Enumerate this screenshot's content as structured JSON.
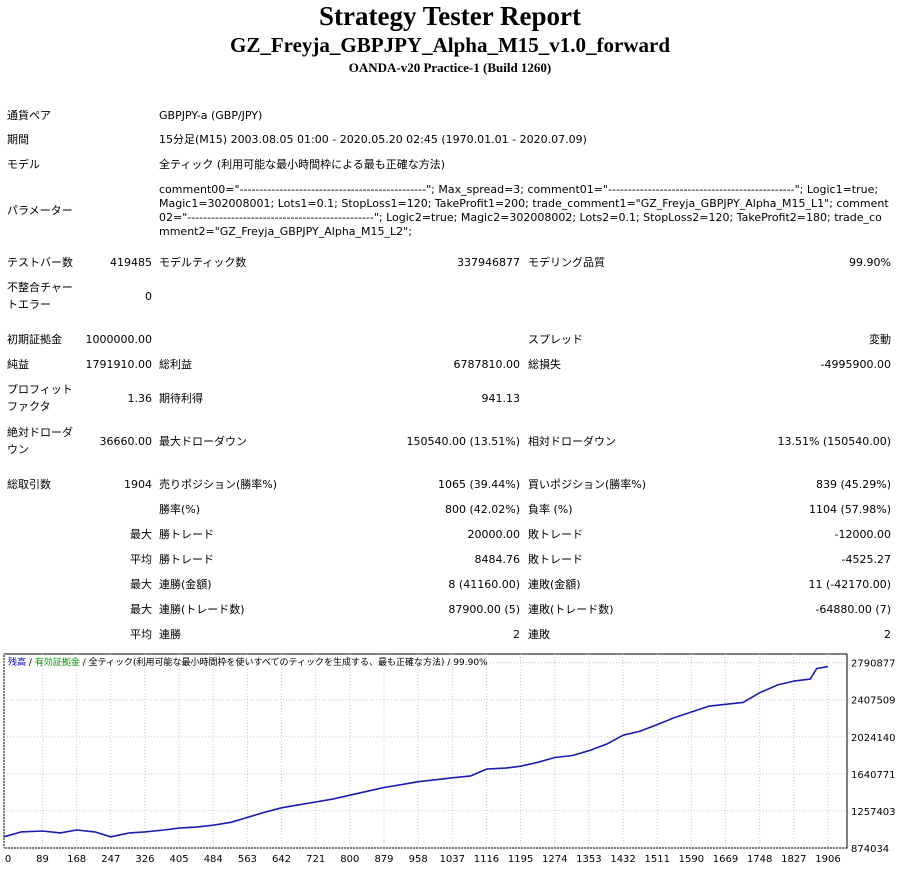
{
  "report": {
    "title": "Strategy Tester Report",
    "expert": "GZ_Freyja_GBPJPY_Alpha_M15_v1.0_forward",
    "server": "OANDA-v20 Practice-1 (Build 1260)"
  },
  "info": {
    "symbol_label": "通貨ペア",
    "symbol": "GBPJPY-a (GBP/JPY)",
    "period_label": "期間",
    "period": "15分足(M15) 2003.08.05 01:00 - 2020.05.20 02:45 (1970.01.01 - 2020.07.09)",
    "model_label": "モデル",
    "model": "全ティック (利用可能な最小時間枠による最も正確な方法)",
    "params_label": "パラメーター",
    "params": "comment00=\"-----------------------------------------------\"; Max_spread=3; comment01=\"-----------------------------------------------\"; Logic1=true; Magic1=302008001; Lots1=0.1; StopLoss1=120; TakeProfit1=200; trade_comment1=\"GZ_Freyja_GBPJPY_Alpha_M15_L1\"; comment02=\"-----------------------------------------------\"; Logic2=true; Magic2=302008002; Lots2=0.1; StopLoss2=120; TakeProfit2=180; trade_comment2=\"GZ_Freyja_GBPJPY_Alpha_M15_L2\";"
  },
  "stats": {
    "bars_label": "テストバー数",
    "bars": "419485",
    "ticks_label": "モデルティック数",
    "ticks": "337946877",
    "quality_label": "モデリング品質",
    "quality": "99.90%",
    "mismatch_label_1": "不整合チャー",
    "mismatch_label_2": "トエラー",
    "mismatch": "0",
    "deposit_label": "初期証拠金",
    "deposit": "1000000.00",
    "spread_label": "スプレッド",
    "spread": "変動",
    "net_label": "純益",
    "net": "1791910.00",
    "gross_profit_label": "総利益",
    "gross_profit": "6787810.00",
    "gross_loss_label": "総損失",
    "gross_loss": "-4995900.00",
    "pf_label_1": "プロフィット",
    "pf_label_2": "ファクタ",
    "pf": "1.36",
    "expected_label": "期待利得",
    "expected": "941.13",
    "abs_dd_label_1": "絶対ドローダ",
    "abs_dd_label_2": "ウン",
    "abs_dd": "36660.00",
    "max_dd_label": "最大ドローダウン",
    "max_dd": "150540.00 (13.51%)",
    "rel_dd_label": "相対ドローダウン",
    "rel_dd": "13.51% (150540.00)",
    "total_label": "総取引数",
    "total": "1904",
    "short_label": "売りポジション(勝率%)",
    "short": "1065 (39.44%)",
    "long_label": "買いポジション(勝率%)",
    "long": "839 (45.29%)",
    "win_pct_label": "勝率(%)",
    "win_pct": "800 (42.02%)",
    "loss_pct_label": "負率 (%)",
    "loss_pct": "1104 (57.98%)",
    "max_word": "最大",
    "avg_word": "平均",
    "win_trade_label": "勝トレード",
    "loss_trade_label": "敗トレード",
    "max_win": "20000.00",
    "max_loss": "-12000.00",
    "avg_win": "8484.76",
    "avg_loss": "-4525.27",
    "cons_win_money_label": "連勝(金額)",
    "cons_win_money": "8 (41160.00)",
    "cons_loss_money_label": "連敗(金額)",
    "cons_loss_money": "11 (-42170.00)",
    "cons_win_trades_label": "連勝(トレード数)",
    "cons_win_trades": "87900.00 (5)",
    "cons_loss_trades_label": "連敗(トレード数)",
    "cons_loss_trades": "-64880.00 (7)",
    "avg_cons_win_label": "連勝",
    "avg_cons_win": "2",
    "avg_cons_loss_label": "連敗",
    "avg_cons_loss": "2"
  },
  "chart_legend": {
    "balance": "残高",
    "sep1": " / ",
    "margin": "有効証拠金",
    "sep2": " / ",
    "model": "全ティック(利用可能な最小時間枠を使いすべてのティックを生成する、最も正確な方法)",
    "sep3": " / ",
    "quality": "99.90%",
    "balance_color": "#0000c0",
    "margin_color": "#00a000"
  },
  "chart_data": {
    "type": "line",
    "title": "",
    "xlabel": "",
    "ylabel": "",
    "x_ticks": [
      "0",
      "89",
      "168",
      "247",
      "326",
      "405",
      "484",
      "563",
      "642",
      "721",
      "800",
      "879",
      "958",
      "1037",
      "1116",
      "1195",
      "1274",
      "1353",
      "1432",
      "1511",
      "1590",
      "1669",
      "1748",
      "1827",
      "1906"
    ],
    "y_ticks": [
      "2790877",
      "2407509",
      "2024140",
      "1640771",
      "1257403",
      "874034"
    ],
    "xlim": [
      0,
      1950
    ],
    "ylim": [
      874034,
      2880000
    ],
    "grid": true,
    "series": [
      {
        "name": "残高",
        "color": "#1c1cb4",
        "x": [
          0,
          40,
          89,
          130,
          168,
          210,
          247,
          290,
          326,
          370,
          405,
          445,
          484,
          525,
          563,
          600,
          642,
          680,
          721,
          760,
          800,
          840,
          879,
          920,
          958,
          1000,
          1037,
          1080,
          1116,
          1160,
          1195,
          1235,
          1274,
          1315,
          1353,
          1395,
          1432,
          1470,
          1511,
          1550,
          1590,
          1630,
          1669,
          1710,
          1748,
          1790,
          1827,
          1865,
          1880,
          1906
        ],
        "values": [
          990000,
          1040000,
          1050000,
          1030000,
          1060000,
          1040000,
          990000,
          1030000,
          1040000,
          1060000,
          1080000,
          1090000,
          1110000,
          1140000,
          1190000,
          1240000,
          1290000,
          1320000,
          1350000,
          1380000,
          1420000,
          1460000,
          1500000,
          1530000,
          1560000,
          1580000,
          1600000,
          1620000,
          1690000,
          1700000,
          1720000,
          1760000,
          1810000,
          1830000,
          1880000,
          1950000,
          2040000,
          2080000,
          2150000,
          2220000,
          2280000,
          2340000,
          2360000,
          2380000,
          2480000,
          2560000,
          2600000,
          2620000,
          2730000,
          2750000
        ]
      }
    ]
  }
}
